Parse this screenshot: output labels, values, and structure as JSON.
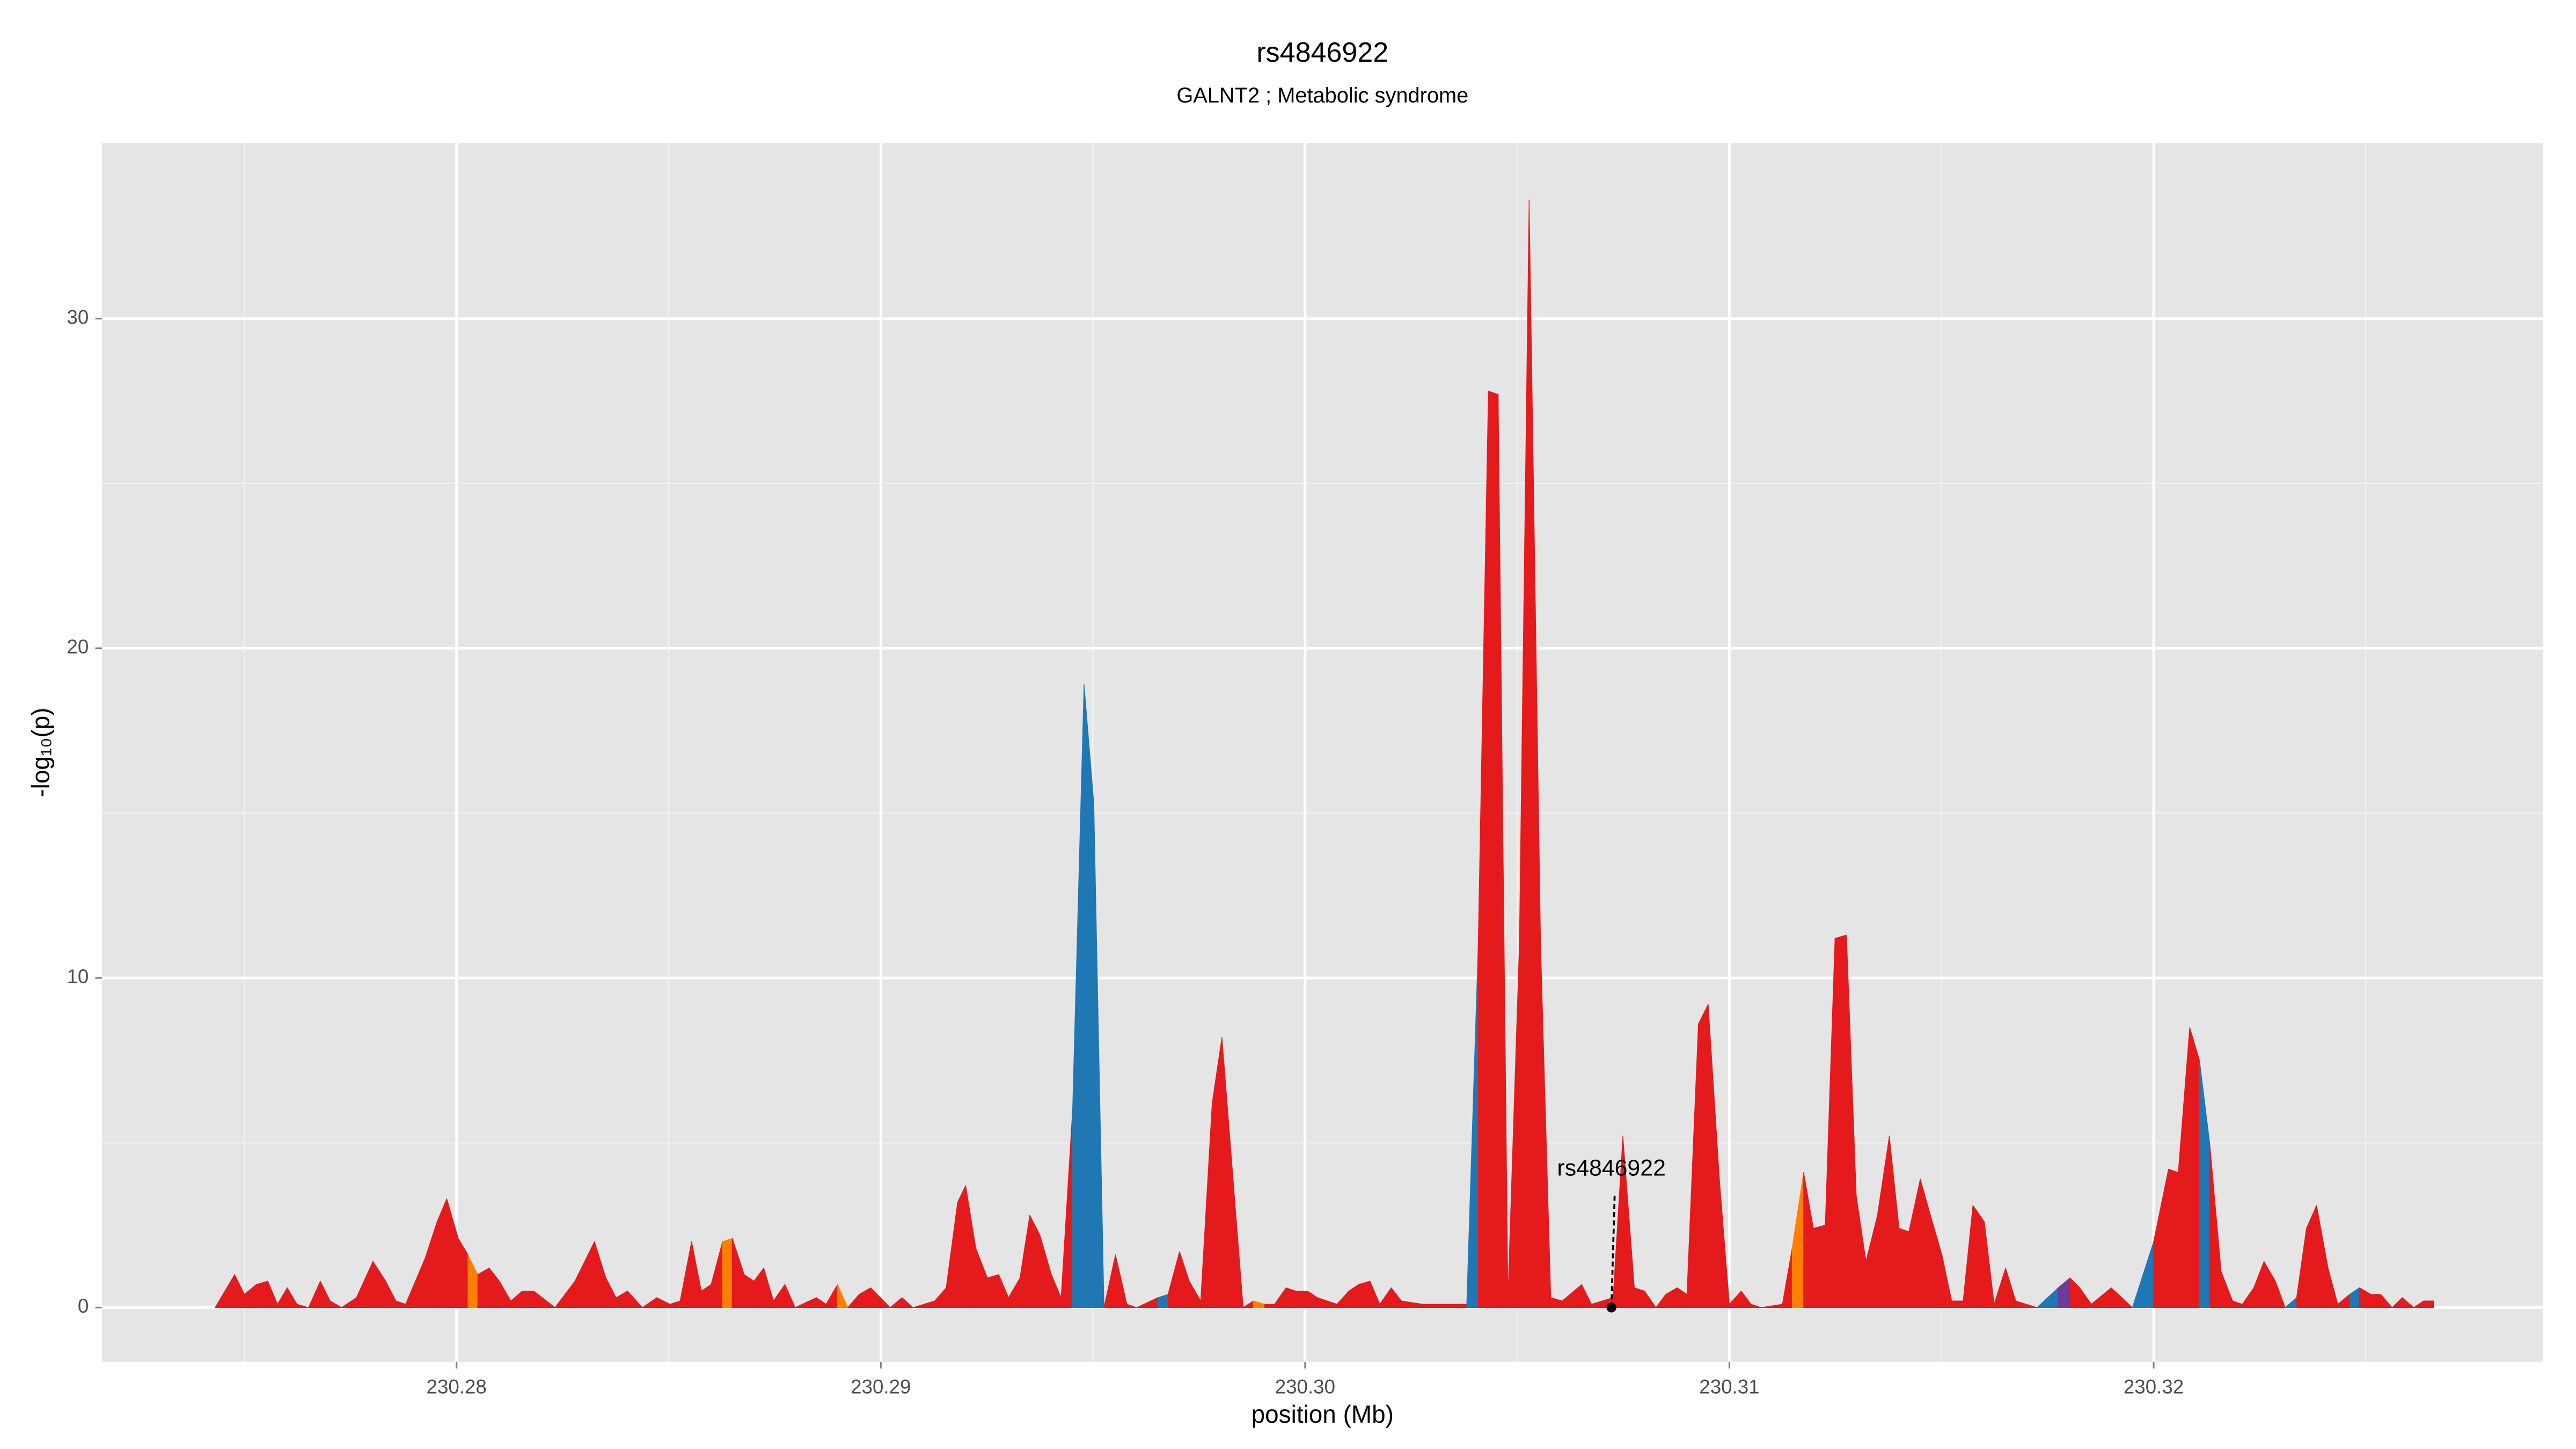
{
  "chart_data": {
    "type": "area",
    "title": "rs4846922",
    "subtitle": "GALNT2 ; Metabolic syndrome",
    "x_label": "position (Mb)",
    "y_label": "-log₁₀(p)",
    "xlim": [
      230.27164,
      230.32918
    ],
    "ylim": [
      -1.65,
      35.33
    ],
    "xticks": [
      230.28,
      230.29,
      {
        "value": 230.3,
        "label": "230.30"
      },
      230.31,
      230.32
    ],
    "yticks": [
      0,
      10,
      20,
      30
    ],
    "grid": true,
    "background": "#e5e5e5",
    "x": [
      230.27431,
      230.27477,
      230.275,
      230.27528,
      230.27555,
      230.27578,
      230.27601,
      230.27624,
      230.27651,
      230.27679,
      230.27702,
      230.27729,
      230.27764,
      230.27803,
      230.27833,
      230.27857,
      230.2788,
      230.27926,
      230.27954,
      230.27977,
      230.28004,
      230.28027,
      230.2805,
      230.28077,
      230.28101,
      230.28128,
      230.28155,
      230.28182,
      230.28232,
      230.28279,
      230.28325,
      230.28352,
      230.28376,
      230.28403,
      230.28438,
      230.28472,
      230.28503,
      230.28527,
      230.28554,
      230.28577,
      230.286,
      230.28627,
      230.2865,
      230.28678,
      230.28701,
      230.28724,
      230.28747,
      230.28774,
      230.28798,
      230.28848,
      230.28871,
      230.28898,
      230.28922,
      230.28949,
      230.28976,
      230.28999,
      230.29022,
      230.2905,
      230.29076,
      230.29127,
      230.29154,
      230.29181,
      230.292,
      230.29224,
      230.29251,
      230.29278,
      230.29301,
      230.29328,
      230.29351,
      230.29375,
      230.29402,
      230.29425,
      230.29452,
      230.29479,
      230.29502,
      230.29526,
      230.29553,
      230.2958,
      230.29603,
      230.29653,
      230.29677,
      230.29704,
      230.29727,
      230.29754,
      230.29781,
      230.29804,
      230.29854,
      230.29878,
      230.29905,
      230.29928,
      230.29955,
      230.29978,
      230.30006,
      230.30029,
      230.30075,
      230.30103,
      230.30126,
      230.30153,
      230.30176,
      230.30203,
      230.30227,
      230.30277,
      230.30327,
      230.30381,
      230.30408,
      230.30432,
      230.30455,
      230.30478,
      230.30505,
      230.30528,
      230.30555,
      230.30579,
      230.30606,
      230.30652,
      230.30675,
      230.30726,
      230.30749,
      230.30776,
      230.308,
      230.30827,
      230.3085,
      230.30877,
      230.309,
      230.30927,
      230.3095,
      230.30977,
      230.31,
      230.31028,
      230.31051,
      230.31075,
      230.31125,
      230.31148,
      230.31175,
      230.31198,
      230.31226,
      230.31249,
      230.31276,
      230.31299,
      230.31322,
      230.31349,
      230.31377,
      230.314,
      230.31423,
      230.3145,
      230.31474,
      230.31501,
      230.31524,
      230.31551,
      230.31574,
      230.31601,
      230.31624,
      230.31651,
      230.31675,
      230.31725,
      230.31775,
      230.31803,
      230.31826,
      230.31853,
      230.319,
      230.3195,
      230.32,
      230.32035,
      230.32058,
      230.32085,
      230.32108,
      230.32132,
      230.32159,
      230.32186,
      230.32209,
      230.32236,
      230.3226,
      230.32287,
      230.3231,
      230.32337,
      230.3236,
      230.32384,
      230.32411,
      230.32434,
      230.32462,
      230.32485,
      230.32512,
      230.32535,
      230.32562,
      230.32586,
      230.32613,
      230.32636,
      230.3266
    ],
    "values": [
      0,
      1.0,
      0.4,
      0.7,
      0.8,
      0.1,
      0.6,
      0.1,
      0,
      0.8,
      0.2,
      0,
      0.3,
      1.4,
      0.8,
      0.2,
      0.1,
      1.5,
      2.6,
      3.3,
      2.1,
      1.6,
      1.0,
      1.2,
      0.8,
      0.2,
      0.5,
      0.5,
      0,
      0.8,
      2.0,
      0.9,
      0.3,
      0.5,
      0,
      0.3,
      0.1,
      0.2,
      2.0,
      0.5,
      0.7,
      2.0,
      2.1,
      1.0,
      0.8,
      1.2,
      0.2,
      0.7,
      0,
      0.3,
      0.1,
      0.7,
      0,
      0.4,
      0.6,
      0.3,
      0,
      0.3,
      0,
      0.2,
      0.6,
      3.2,
      3.7,
      1.8,
      0.9,
      1.0,
      0.3,
      0.9,
      2.8,
      2.2,
      1.0,
      0.3,
      6.0,
      18.9,
      15.3,
      0,
      1.6,
      0.1,
      0,
      0.3,
      0.4,
      1.7,
      0.8,
      0.2,
      6.2,
      8.2,
      0,
      0.2,
      0.1,
      0.1,
      0.6,
      0.5,
      0.5,
      0.3,
      0.1,
      0.5,
      0.7,
      0.8,
      0.1,
      0.6,
      0.2,
      0.1,
      0.1,
      0.1,
      11,
      27.8,
      27.7,
      0.3,
      11,
      33.6,
      11,
      0.3,
      0.2,
      0.7,
      0.1,
      0.3,
      5.2,
      0.6,
      0.5,
      0,
      0.4,
      0.6,
      0.4,
      8.6,
      9.2,
      3.8,
      0.1,
      0.5,
      0.1,
      0,
      0.1,
      1.8,
      4.1,
      2.4,
      2.5,
      11.2,
      11.3,
      3.4,
      1.4,
      2.8,
      5.2,
      2.4,
      2.3,
      3.9,
      2.8,
      1.6,
      0.2,
      0.2,
      3.1,
      2.6,
      0.1,
      1.2,
      0.2,
      0,
      0.6,
      0.9,
      0.6,
      0.1,
      0.6,
      0,
      2.0,
      4.2,
      4.1,
      8.5,
      7.5,
      5.0,
      1.1,
      0.2,
      0.1,
      0.6,
      1.4,
      0.8,
      0,
      0.3,
      2.4,
      3.1,
      1.2,
      0.1,
      0.4,
      0.6,
      0.4,
      0.4,
      0,
      0.3,
      0,
      0.2,
      0.2
    ],
    "colors": [
      "#e41a1c",
      "#e41a1c",
      "#e41a1c",
      "#e41a1c",
      "#e41a1c",
      "#e41a1c",
      "#e41a1c",
      "#e41a1c",
      "#e41a1c",
      "#e41a1c",
      "#e41a1c",
      "#e41a1c",
      "#e41a1c",
      "#e41a1c",
      "#e41a1c",
      "#e41a1c",
      "#e41a1c",
      "#e41a1c",
      "#e41a1c",
      "#e41a1c",
      "#e41a1c",
      "#ff7f00",
      "#e41a1c",
      "#e41a1c",
      "#e41a1c",
      "#e41a1c",
      "#e41a1c",
      "#e41a1c",
      "#e41a1c",
      "#e41a1c",
      "#e41a1c",
      "#e41a1c",
      "#e41a1c",
      "#e41a1c",
      "#e41a1c",
      "#e41a1c",
      "#e41a1c",
      "#e41a1c",
      "#e41a1c",
      "#e41a1c",
      "#e41a1c",
      "#ff7f00",
      "#e41a1c",
      "#e41a1c",
      "#e41a1c",
      "#e41a1c",
      "#e41a1c",
      "#e41a1c",
      "#e41a1c",
      "#e41a1c",
      "#e41a1c",
      "#ff7f00",
      "#e41a1c",
      "#e41a1c",
      "#e41a1c",
      "#e41a1c",
      "#e41a1c",
      "#e41a1c",
      "#e41a1c",
      "#e41a1c",
      "#e41a1c",
      "#e41a1c",
      "#e41a1c",
      "#e41a1c",
      "#e41a1c",
      "#e41a1c",
      "#e41a1c",
      "#e41a1c",
      "#e41a1c",
      "#e41a1c",
      "#e41a1c",
      "#e41a1c",
      "#1f78b4",
      "#1f78b4",
      "#1f78b4",
      "#e41a1c",
      "#e41a1c",
      "#e41a1c",
      "#e41a1c",
      "#1f78b4",
      "#e41a1c",
      "#e41a1c",
      "#e41a1c",
      "#e41a1c",
      "#e41a1c",
      "#e41a1c",
      "#e41a1c",
      "#ff7f00",
      "#e41a1c",
      "#e41a1c",
      "#e41a1c",
      "#e41a1c",
      "#e41a1c",
      "#e41a1c",
      "#e41a1c",
      "#e41a1c",
      "#e41a1c",
      "#e41a1c",
      "#e41a1c",
      "#e41a1c",
      "#e41a1c",
      "#e41a1c",
      "#e41a1c",
      "#1f78b4",
      "#e41a1c",
      "#e41a1c",
      "#e41a1c",
      "#e41a1c",
      "#e41a1c",
      "#e41a1c",
      "#e41a1c",
      "#e41a1c",
      "#e41a1c",
      "#e41a1c",
      "#e41a1c",
      "#e41a1c",
      "#e41a1c",
      "#e41a1c",
      "#e41a1c",
      "#e41a1c",
      "#e41a1c",
      "#e41a1c",
      "#e41a1c",
      "#e41a1c",
      "#e41a1c",
      "#e41a1c",
      "#e41a1c",
      "#e41a1c",
      "#e41a1c",
      "#e41a1c",
      "#e41a1c",
      "#ff7f00",
      "#e41a1c",
      "#e41a1c",
      "#e41a1c",
      "#e41a1c",
      "#e41a1c",
      "#e41a1c",
      "#e41a1c",
      "#e41a1c",
      "#e41a1c",
      "#e41a1c",
      "#e41a1c",
      "#e41a1c",
      "#e41a1c",
      "#e41a1c",
      "#e41a1c",
      "#e41a1c",
      "#e41a1c",
      "#e41a1c",
      "#e41a1c",
      "#e41a1c",
      "#e41a1c",
      "#1f78b4",
      "#6a3d9a",
      "#e41a1c",
      "#e41a1c",
      "#e41a1c",
      "#e41a1c",
      "#1f78b4",
      "#e41a1c",
      "#e41a1c",
      "#e41a1c",
      "#e41a1c",
      "#1f78b4",
      "#e41a1c",
      "#e41a1c",
      "#e41a1c",
      "#e41a1c",
      "#e41a1c",
      "#e41a1c",
      "#e41a1c",
      "#1f78b4",
      "#e41a1c",
      "#e41a1c",
      "#e41a1c",
      "#e41a1c",
      "#e41a1c",
      "#1f78b4",
      "#e41a1c",
      "#e41a1c",
      "#e41a1c",
      "#e41a1c",
      "#e41a1c",
      "#e41a1c",
      "#e41a1c",
      "#e41a1c"
    ],
    "annotation": {
      "text": "rs4846922",
      "x": 230.30722,
      "y": 0
    }
  }
}
